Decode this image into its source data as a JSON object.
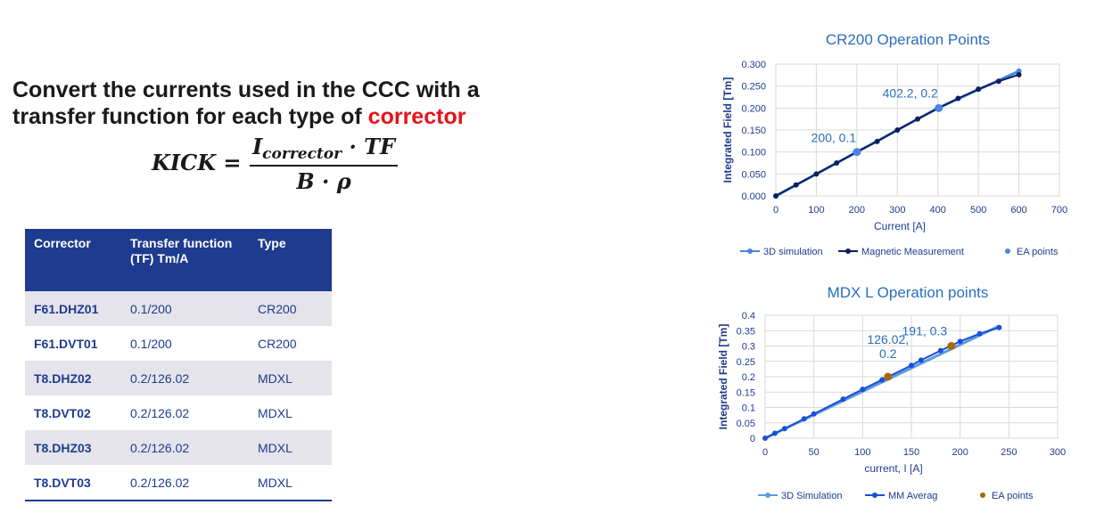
{
  "slide": {
    "heading_line1": "Convert the currents used in the CCC with a",
    "heading_line2_prefix": "transfer function for each type of ",
    "heading_accent": "corrector",
    "accent_color": "#e8121a",
    "formula": {
      "lhs": "KICK =",
      "numerator_main": "I",
      "numerator_sub": "corrector",
      "numerator_tail": " · TF",
      "denominator": "B · ρ"
    }
  },
  "table": {
    "headers": [
      "Corrector",
      "Transfer function (TF) Tm/A",
      "Type"
    ],
    "header_color": "#1f3b8f",
    "rows": [
      [
        "F61.DHZ01",
        "0.1/200",
        "CR200"
      ],
      [
        "F61.DVT01",
        "0.1/200",
        "CR200"
      ],
      [
        "T8.DHZ02",
        "0.2/126.02",
        "MDXL"
      ],
      [
        "T8.DVT02",
        "0.2/126.02",
        "MDXL"
      ],
      [
        "T8.DHZ03",
        "0.2/126.02",
        "MDXL"
      ],
      [
        "T8.DVT03",
        "0.2/126.02",
        "MDXL"
      ]
    ]
  },
  "chart_data": [
    {
      "type": "scatter",
      "title": "CR200 Operation Points",
      "xlabel": "Current [A]",
      "ylabel": "Integrated Field [Tm]",
      "xlim": [
        0,
        700
      ],
      "ylim": [
        0,
        0.3
      ],
      "xticks": [
        0,
        100,
        200,
        300,
        400,
        500,
        600,
        700
      ],
      "yticks": [
        "0.000",
        "0.050",
        "0.100",
        "0.150",
        "0.200",
        "0.250",
        "0.300"
      ],
      "grid": true,
      "legend_position": "bottom",
      "series": [
        {
          "name": "3D simulation",
          "color": "#4a86e0",
          "x": [
            0,
            200,
            400,
            600
          ],
          "y": [
            0,
            0.1,
            0.2,
            0.284
          ]
        },
        {
          "name": "Magnetic Measurement",
          "color": "#0d1f5c",
          "x": [
            0,
            50,
            100,
            150,
            200,
            250,
            300,
            350,
            400,
            450,
            500,
            550,
            600
          ],
          "y": [
            0,
            0.025,
            0.05,
            0.075,
            0.1,
            0.124,
            0.15,
            0.175,
            0.199,
            0.222,
            0.243,
            0.261,
            0.276
          ]
        },
        {
          "name": "EA points",
          "color": "#4a86e0",
          "x": [
            200,
            402.2
          ],
          "y": [
            0.1,
            0.2
          ]
        }
      ],
      "annotations": [
        {
          "text": "200, 0.1",
          "x": 200,
          "y": 0.1
        },
        {
          "text": "402.2, 0.2",
          "x": 402.2,
          "y": 0.2
        }
      ]
    },
    {
      "type": "scatter",
      "title": "MDX L Operation points",
      "xlabel": "current, I [A]",
      "ylabel": "Integrated Field [Tm]",
      "xlim": [
        0,
        300
      ],
      "ylim": [
        0,
        0.4
      ],
      "xticks": [
        0,
        50,
        100,
        150,
        200,
        250,
        300
      ],
      "yticks": [
        "0",
        "0.05",
        "0.1",
        "0.15",
        "0.2",
        "0.25",
        "0.3",
        "0.35",
        "0.4"
      ],
      "grid": true,
      "legend_position": "bottom",
      "series": [
        {
          "name": "3D Simulation",
          "color": "#5b9be0",
          "x": [
            0,
            240
          ],
          "y": [
            0,
            0.365
          ]
        },
        {
          "name": "MM Averag",
          "color": "#1a4fd6",
          "x": [
            0,
            10,
            20,
            40,
            50,
            80,
            100,
            120,
            150,
            160,
            180,
            190,
            200,
            220,
            240
          ],
          "y": [
            0,
            0.016,
            0.031,
            0.063,
            0.079,
            0.127,
            0.159,
            0.19,
            0.237,
            0.254,
            0.285,
            0.3,
            0.315,
            0.34,
            0.36
          ]
        },
        {
          "name": "EA points",
          "color": "#a66a00",
          "x": [
            126.02,
            191
          ],
          "y": [
            0.2,
            0.3
          ]
        }
      ],
      "annotations": [
        {
          "text": "126.02,",
          "text2": "0.2",
          "x": 126.02,
          "y": 0.2
        },
        {
          "text": "191, 0.3",
          "x": 191,
          "y": 0.3
        }
      ]
    }
  ]
}
